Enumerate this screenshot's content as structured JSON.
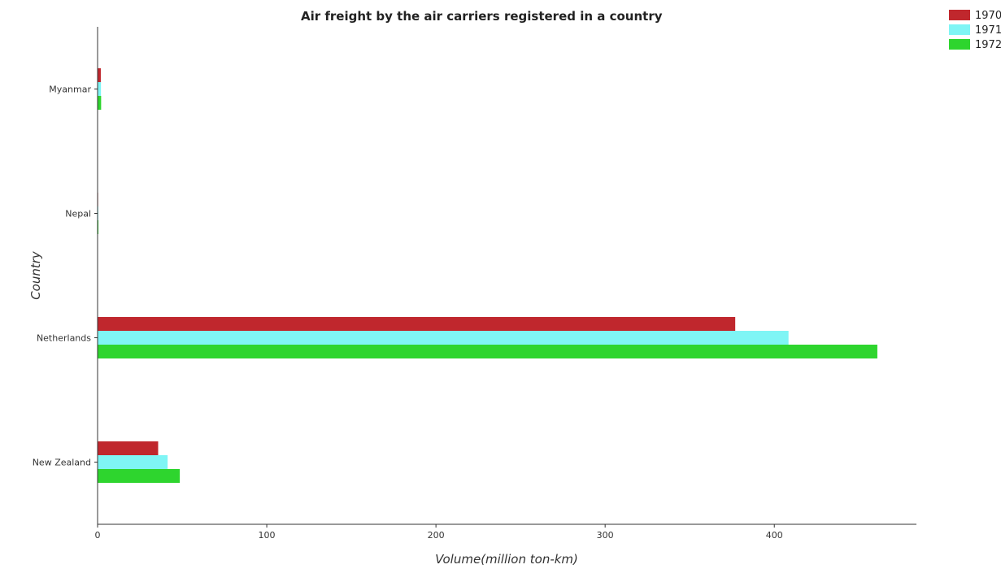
{
  "chart_data": {
    "type": "bar",
    "orientation": "horizontal",
    "title": "Air freight by the air carriers registered in a country",
    "xlabel": "Volume(million ton-km)",
    "ylabel": "Country",
    "categories": [
      "Myanmar",
      "Nepal",
      "Netherlands",
      "New Zealand"
    ],
    "series": [
      {
        "name": "1970",
        "color": "#c0272d",
        "values": [
          1.9,
          0.3,
          376.9,
          35.8
        ]
      },
      {
        "name": "1971",
        "color": "#7ff5f5",
        "values": [
          2.0,
          0.4,
          408.4,
          41.4
        ]
      },
      {
        "name": "1972",
        "color": "#2ed52e",
        "values": [
          2.1,
          0.5,
          460.9,
          48.6
        ]
      }
    ],
    "xlim": [
      0,
      484
    ],
    "xticks": [
      0,
      100,
      200,
      300,
      400
    ],
    "grid": false,
    "legend_position": "top-right"
  }
}
